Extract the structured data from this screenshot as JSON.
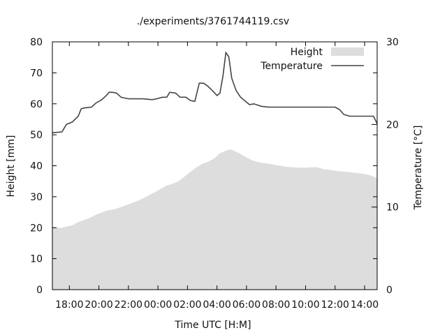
{
  "chart_data": {
    "type": "area+line",
    "title": "./experiments/3761744119.csv",
    "xlabel": "Time UTC [H:M]",
    "ylabel": "Height [mm]",
    "y2label": "Temperature [°C]",
    "xlim": [
      16.85,
      38.85
    ],
    "ylim": [
      0,
      80
    ],
    "y2lim": [
      0,
      30
    ],
    "x_tick_values": [
      18,
      20,
      22,
      24,
      26,
      28,
      30,
      32,
      34,
      36,
      38
    ],
    "x_tick_labels": [
      "18:00",
      "20:00",
      "22:00",
      "00:00",
      "02:00",
      "04:00",
      "06:00",
      "08:00",
      "10:00",
      "12:00",
      "14:00"
    ],
    "y_ticks": [
      0,
      10,
      20,
      30,
      40,
      50,
      60,
      70,
      80
    ],
    "y2_ticks": [
      0,
      10,
      20,
      30
    ],
    "legend_position": "top-right",
    "grid": false,
    "series": [
      {
        "name": "Height",
        "kind": "area",
        "axis": "y",
        "color": "#dddddd",
        "x": [
          16.85,
          17.0,
          17.4,
          17.8,
          18.2,
          18.6,
          19.0,
          19.4,
          19.8,
          20.2,
          20.6,
          21.0,
          21.4,
          21.8,
          22.2,
          22.6,
          23.0,
          23.4,
          23.8,
          24.2,
          24.6,
          25.0,
          25.4,
          25.8,
          26.2,
          26.6,
          27.0,
          27.4,
          27.8,
          28.2,
          28.6,
          28.8,
          29.0,
          29.2,
          29.4,
          29.6,
          29.8,
          30.0,
          30.4,
          30.8,
          31.2,
          31.6,
          32.0,
          32.4,
          32.8,
          33.2,
          33.6,
          34.0,
          34.4,
          34.8,
          35.2,
          35.6,
          36.0,
          36.4,
          36.8,
          37.2,
          37.6,
          38.0,
          38.4,
          38.85
        ],
        "y": [
          20.3,
          20.2,
          19.9,
          20.3,
          20.8,
          21.8,
          22.5,
          23.2,
          24.2,
          24.9,
          25.6,
          25.9,
          26.5,
          27.2,
          27.9,
          28.6,
          29.5,
          30.5,
          31.5,
          32.6,
          33.6,
          34.2,
          35.0,
          36.5,
          38.0,
          39.5,
          40.6,
          41.3,
          42.3,
          44.0,
          44.9,
          45.2,
          45.2,
          44.7,
          44.3,
          43.8,
          43.2,
          42.7,
          41.7,
          41.2,
          40.8,
          40.6,
          40.2,
          39.9,
          39.6,
          39.5,
          39.4,
          39.4,
          39.5,
          39.5,
          38.9,
          38.7,
          38.4,
          38.2,
          38.0,
          37.8,
          37.6,
          37.3,
          36.9,
          36.0
        ]
      },
      {
        "name": "Temperature",
        "kind": "line",
        "axis": "y2",
        "color": "#444444",
        "x": [
          16.85,
          17.5,
          17.8,
          18.2,
          18.6,
          18.8,
          19.0,
          19.5,
          19.8,
          20.2,
          20.5,
          20.7,
          20.9,
          21.2,
          21.5,
          22.0,
          22.5,
          23.0,
          23.6,
          23.9,
          24.3,
          24.6,
          24.8,
          25.2,
          25.5,
          25.9,
          26.2,
          26.5,
          26.8,
          27.1,
          27.4,
          27.8,
          28.0,
          28.2,
          28.4,
          28.6,
          28.8,
          29.0,
          29.3,
          29.6,
          30.0,
          30.2,
          30.5,
          31.0,
          31.5,
          32.0,
          33.0,
          34.0,
          35.0,
          36.0,
          36.3,
          36.6,
          37.0,
          37.5,
          38.0,
          38.4,
          38.6,
          38.85
        ],
        "y": [
          19.0,
          19.1,
          20.0,
          20.3,
          21.0,
          21.9,
          22.0,
          22.1,
          22.6,
          23.0,
          23.5,
          23.9,
          23.9,
          23.8,
          23.3,
          23.1,
          23.1,
          23.1,
          23.0,
          23.1,
          23.3,
          23.3,
          23.9,
          23.8,
          23.3,
          23.3,
          22.9,
          22.8,
          25.0,
          25.0,
          24.6,
          23.9,
          23.5,
          23.8,
          25.8,
          28.7,
          28.2,
          25.6,
          24.1,
          23.3,
          22.7,
          22.4,
          22.5,
          22.2,
          22.1,
          22.1,
          22.1,
          22.1,
          22.1,
          22.1,
          21.8,
          21.2,
          21.0,
          21.0,
          21.0,
          21.0,
          21.0,
          20.1
        ]
      }
    ]
  }
}
